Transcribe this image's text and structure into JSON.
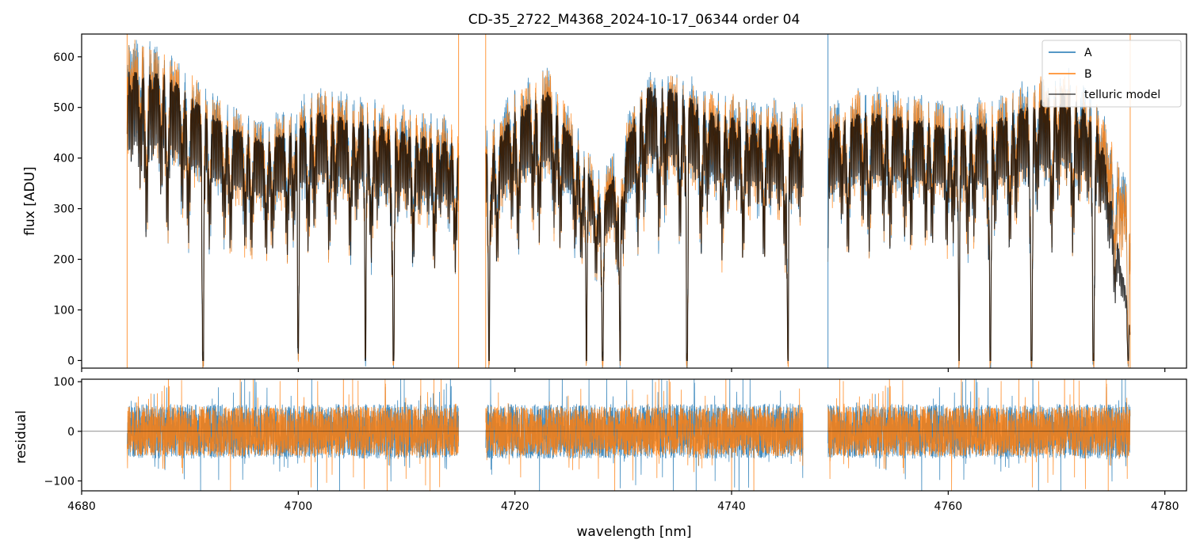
{
  "chart_data": [
    {
      "type": "line",
      "title": "CD-35_2722_M4368_2024-10-17_06344  order 04",
      "xlabel": "",
      "ylabel": "flux [ADU]",
      "xlim": [
        4680,
        4782
      ],
      "ylim": [
        -15,
        645
      ],
      "xticks": [
        4680,
        4700,
        4720,
        4740,
        4760,
        4780
      ],
      "yticks": [
        0,
        100,
        200,
        300,
        400,
        500,
        600
      ],
      "tick_labels_x_visible": false,
      "legend_position": "upper right",
      "series": [
        {
          "name": "A",
          "color": "#1f77b4",
          "segments": [
            [
              4684.2,
              4714.8
            ],
            [
              4717.3,
              4746.6
            ],
            [
              4748.9,
              4776.8
            ]
          ],
          "continuum": [
            [
              4684.2,
              610
            ],
            [
              4688,
              575
            ],
            [
              4690,
              530
            ],
            [
              4693,
              480
            ],
            [
              4697,
              440
            ],
            [
              4702,
              500
            ],
            [
              4708,
              470
            ],
            [
              4714,
              440
            ],
            [
              4717.5,
              420
            ],
            [
              4720,
              500
            ],
            [
              4723,
              540
            ],
            [
              4726,
              420
            ],
            [
              4728,
              320
            ],
            [
              4730,
              420
            ],
            [
              4732,
              530
            ],
            [
              4735,
              530
            ],
            [
              4738,
              500
            ],
            [
              4742,
              480
            ],
            [
              4746,
              470
            ],
            [
              4749,
              470
            ],
            [
              4752,
              500
            ],
            [
              4756,
              490
            ],
            [
              4760,
              470
            ],
            [
              4764,
              480
            ],
            [
              4768,
              520
            ],
            [
              4771,
              540
            ],
            [
              4774,
              470
            ],
            [
              4776.8,
              300
            ]
          ]
        },
        {
          "name": "B",
          "color": "#ff7f0e",
          "segments": [
            [
              4684.2,
              4714.8
            ],
            [
              4717.3,
              4746.6
            ],
            [
              4748.9,
              4776.8
            ]
          ],
          "continuum": [
            [
              4684.2,
              600
            ],
            [
              4688,
              570
            ],
            [
              4690,
              525
            ],
            [
              4693,
              470
            ],
            [
              4697,
              430
            ],
            [
              4702,
              495
            ],
            [
              4708,
              465
            ],
            [
              4714,
              435
            ],
            [
              4717.5,
              415
            ],
            [
              4720,
              495
            ],
            [
              4723,
              535
            ],
            [
              4726,
              415
            ],
            [
              4728,
              315
            ],
            [
              4730,
              415
            ],
            [
              4732,
              525
            ],
            [
              4735,
              525
            ],
            [
              4738,
              495
            ],
            [
              4742,
              475
            ],
            [
              4746,
              465
            ],
            [
              4749,
              465
            ],
            [
              4752,
              495
            ],
            [
              4756,
              485
            ],
            [
              4760,
              465
            ],
            [
              4764,
              475
            ],
            [
              4768,
              515
            ],
            [
              4771,
              535
            ],
            [
              4774,
              465
            ],
            [
              4776.8,
              290
            ]
          ]
        },
        {
          "name": "telluric model",
          "color": "#000000",
          "segments": [
            [
              4684.2,
              4714.8
            ],
            [
              4717.3,
              4746.6
            ],
            [
              4748.9,
              4776.8
            ]
          ],
          "continuum": [
            [
              4684.2,
              570
            ],
            [
              4688,
              565
            ],
            [
              4690,
              520
            ],
            [
              4693,
              470
            ],
            [
              4697,
              430
            ],
            [
              4702,
              490
            ],
            [
              4708,
              460
            ],
            [
              4714,
              430
            ],
            [
              4717.5,
              410
            ],
            [
              4720,
              490
            ],
            [
              4723,
              530
            ],
            [
              4726,
              410
            ],
            [
              4728,
              310
            ],
            [
              4730,
              410
            ],
            [
              4732,
              540
            ],
            [
              4735,
              535
            ],
            [
              4738,
              490
            ],
            [
              4742,
              470
            ],
            [
              4746,
              460
            ],
            [
              4749,
              460
            ],
            [
              4752,
              490
            ],
            [
              4756,
              480
            ],
            [
              4760,
              460
            ],
            [
              4764,
              470
            ],
            [
              4768,
              510
            ],
            [
              4771,
              530
            ],
            [
              4774,
              460
            ],
            [
              4776.8,
              80
            ]
          ]
        }
      ],
      "deep_lines": [
        4691.2,
        4700.0,
        4706.2,
        4708.8,
        4717.6,
        4726.6,
        4728.1,
        4729.7,
        4735.9,
        4745.2,
        4761.0,
        4763.9,
        4767.7,
        4773.4,
        4776.6
      ]
    },
    {
      "type": "line",
      "title": "",
      "xlabel": "wavelength [nm]",
      "ylabel": "residual",
      "xlim": [
        4680,
        4782
      ],
      "ylim": [
        -120,
        105
      ],
      "xticks": [
        4680,
        4700,
        4720,
        4740,
        4760,
        4780
      ],
      "yticks": [
        -100,
        0,
        100
      ],
      "reference_line_y": 0,
      "series": [
        {
          "name": "A",
          "color": "#1f77b4",
          "segments": [
            [
              4684.2,
              4714.8
            ],
            [
              4717.3,
              4746.6
            ],
            [
              4748.9,
              4776.8
            ]
          ],
          "amplitude": 55
        },
        {
          "name": "B",
          "color": "#ff7f0e",
          "segments": [
            [
              4684.2,
              4714.8
            ],
            [
              4717.3,
              4746.6
            ],
            [
              4748.9,
              4776.8
            ]
          ],
          "amplitude": 50
        }
      ]
    }
  ]
}
